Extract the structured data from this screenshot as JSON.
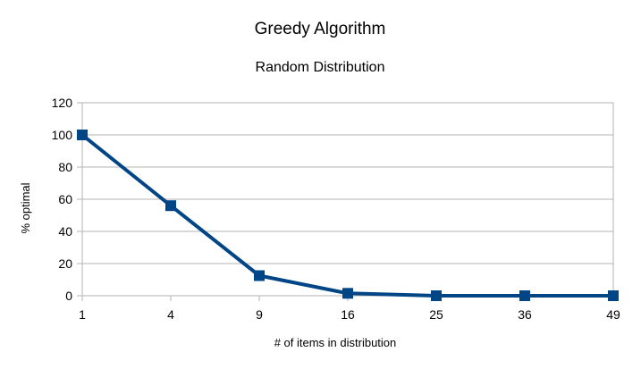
{
  "chart_data": {
    "type": "line",
    "title": "Greedy Algorithm",
    "subtitle": "Random Distribution",
    "xlabel": "# of items in distribution",
    "ylabel": "% optimal",
    "categories": [
      "1",
      "4",
      "9",
      "16",
      "25",
      "36",
      "49"
    ],
    "series": [
      {
        "values": [
          100,
          56,
          12.5,
          1.5,
          0,
          0,
          0
        ]
      }
    ],
    "ylim": [
      0,
      120
    ],
    "yticks": [
      "0",
      "20",
      "40",
      "60",
      "80",
      "100",
      "120"
    ],
    "grid": true,
    "legend": "none",
    "colors": {
      "series": "#004586",
      "grid": "#b3b3b3"
    }
  }
}
